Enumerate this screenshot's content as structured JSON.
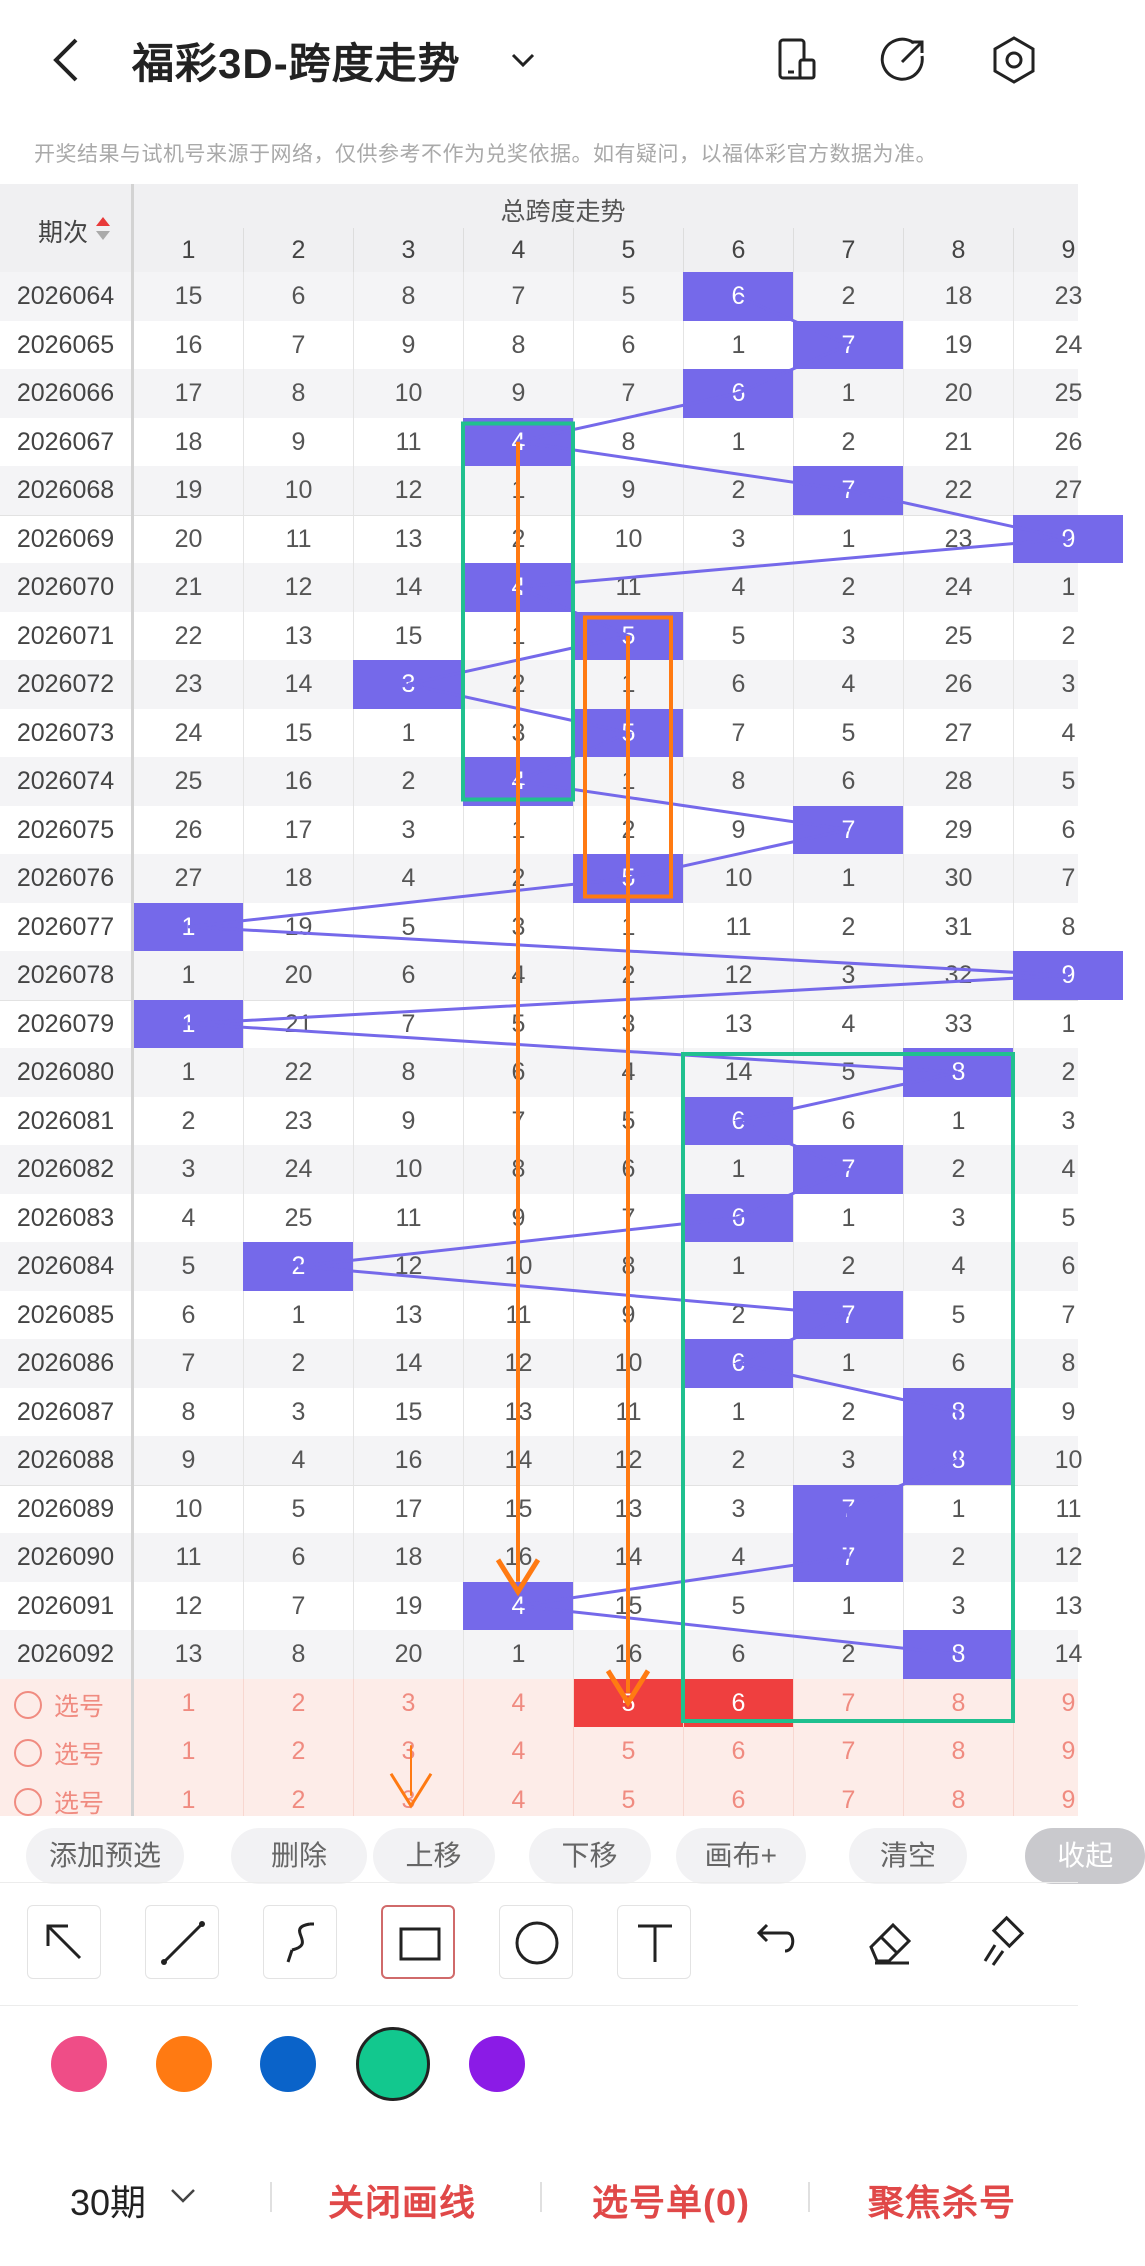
{
  "header": {
    "title": "福彩3D-跨度走势",
    "icons": [
      "back-arrow-icon",
      "chevron-down-icon",
      "device-icon",
      "share-icon",
      "settings-icon"
    ]
  },
  "notice": "开奖结果与试机号来源于网络，仅供参考不作为兑奖依据。如有疑问，以福体彩官方数据为准。",
  "table": {
    "period_header": "期次",
    "group_header": "总跨度走势",
    "columns": [
      "1",
      "2",
      "3",
      "4",
      "5",
      "6",
      "7",
      "8",
      "9"
    ],
    "rows": [
      {
        "period": "2026064",
        "cells": [
          "15",
          "6",
          "8",
          "7",
          "5",
          "6",
          "2",
          "18",
          "23"
        ],
        "hit": 6
      },
      {
        "period": "2026065",
        "cells": [
          "16",
          "7",
          "9",
          "8",
          "6",
          "1",
          "7",
          "19",
          "24"
        ],
        "hit": 7
      },
      {
        "period": "2026066",
        "cells": [
          "17",
          "8",
          "10",
          "9",
          "7",
          "6",
          "1",
          "20",
          "25"
        ],
        "hit": 6
      },
      {
        "period": "2026067",
        "cells": [
          "18",
          "9",
          "11",
          "4",
          "8",
          "1",
          "2",
          "21",
          "26"
        ],
        "hit": 4
      },
      {
        "period": "2026068",
        "cells": [
          "19",
          "10",
          "12",
          "1",
          "9",
          "2",
          "7",
          "22",
          "27"
        ],
        "hit": 7
      },
      {
        "period": "2026069",
        "cells": [
          "20",
          "11",
          "13",
          "2",
          "10",
          "3",
          "1",
          "23",
          "9"
        ],
        "hit": 9
      },
      {
        "period": "2026070",
        "cells": [
          "21",
          "12",
          "14",
          "4",
          "11",
          "4",
          "2",
          "24",
          "1"
        ],
        "hit": 4
      },
      {
        "period": "2026071",
        "cells": [
          "22",
          "13",
          "15",
          "1",
          "5",
          "5",
          "3",
          "25",
          "2"
        ],
        "hit": 5
      },
      {
        "period": "2026072",
        "cells": [
          "23",
          "14",
          "3",
          "2",
          "1",
          "6",
          "4",
          "26",
          "3"
        ],
        "hit": 3
      },
      {
        "period": "2026073",
        "cells": [
          "24",
          "15",
          "1",
          "3",
          "5",
          "7",
          "5",
          "27",
          "4"
        ],
        "hit": 5
      },
      {
        "period": "2026074",
        "cells": [
          "25",
          "16",
          "2",
          "4",
          "1",
          "8",
          "6",
          "28",
          "5"
        ],
        "hit": 4
      },
      {
        "period": "2026075",
        "cells": [
          "26",
          "17",
          "3",
          "1",
          "2",
          "9",
          "7",
          "29",
          "6"
        ],
        "hit": 7
      },
      {
        "period": "2026076",
        "cells": [
          "27",
          "18",
          "4",
          "2",
          "5",
          "10",
          "1",
          "30",
          "7"
        ],
        "hit": 5
      },
      {
        "period": "2026077",
        "cells": [
          "1",
          "19",
          "5",
          "3",
          "1",
          "11",
          "2",
          "31",
          "8"
        ],
        "hit": 1
      },
      {
        "period": "2026078",
        "cells": [
          "1",
          "20",
          "6",
          "4",
          "2",
          "12",
          "3",
          "32",
          "9"
        ],
        "hit": 9
      },
      {
        "period": "2026079",
        "cells": [
          "1",
          "21",
          "7",
          "5",
          "3",
          "13",
          "4",
          "33",
          "1"
        ],
        "hit": 1
      },
      {
        "period": "2026080",
        "cells": [
          "1",
          "22",
          "8",
          "6",
          "4",
          "14",
          "5",
          "8",
          "2"
        ],
        "hit": 8
      },
      {
        "period": "2026081",
        "cells": [
          "2",
          "23",
          "9",
          "7",
          "5",
          "6",
          "6",
          "1",
          "3"
        ],
        "hit": 6
      },
      {
        "period": "2026082",
        "cells": [
          "3",
          "24",
          "10",
          "8",
          "6",
          "1",
          "7",
          "2",
          "4"
        ],
        "hit": 7
      },
      {
        "period": "2026083",
        "cells": [
          "4",
          "25",
          "11",
          "9",
          "7",
          "6",
          "1",
          "3",
          "5"
        ],
        "hit": 6
      },
      {
        "period": "2026084",
        "cells": [
          "5",
          "2",
          "12",
          "10",
          "8",
          "1",
          "2",
          "4",
          "6"
        ],
        "hit": 2
      },
      {
        "period": "2026085",
        "cells": [
          "6",
          "1",
          "13",
          "11",
          "9",
          "2",
          "7",
          "5",
          "7"
        ],
        "hit": 7
      },
      {
        "period": "2026086",
        "cells": [
          "7",
          "2",
          "14",
          "12",
          "10",
          "6",
          "1",
          "6",
          "8"
        ],
        "hit": 6
      },
      {
        "period": "2026087",
        "cells": [
          "8",
          "3",
          "15",
          "13",
          "11",
          "1",
          "2",
          "8",
          "9"
        ],
        "hit": 8
      },
      {
        "period": "2026088",
        "cells": [
          "9",
          "4",
          "16",
          "14",
          "12",
          "2",
          "3",
          "8",
          "10"
        ],
        "hit": 8
      },
      {
        "period": "2026089",
        "cells": [
          "10",
          "5",
          "17",
          "15",
          "13",
          "3",
          "7",
          "1",
          "11"
        ],
        "hit": 7
      },
      {
        "period": "2026090",
        "cells": [
          "11",
          "6",
          "18",
          "16",
          "14",
          "4",
          "7",
          "2",
          "12"
        ],
        "hit": 7
      },
      {
        "period": "2026091",
        "cells": [
          "12",
          "7",
          "19",
          "4",
          "15",
          "5",
          "1",
          "3",
          "13"
        ],
        "hit": 4
      },
      {
        "period": "2026092",
        "cells": [
          "13",
          "8",
          "20",
          "1",
          "16",
          "6",
          "2",
          "8",
          "14"
        ],
        "hit": 8
      }
    ],
    "pick_label": "选号",
    "pick_rows": [
      [
        "1",
        "2",
        "3",
        "4",
        "5",
        "6",
        "7",
        "8",
        "9"
      ],
      [
        "1",
        "2",
        "3",
        "4",
        "5",
        "6",
        "7",
        "8",
        "9"
      ],
      [
        "1",
        "2",
        "3",
        "4",
        "5",
        "6",
        "7",
        "8",
        "9"
      ]
    ]
  },
  "actions": [
    "添加预选",
    "删除",
    "上移",
    "下移",
    "画布+",
    "清空",
    "收起"
  ],
  "tools": [
    "arrow-tool-icon",
    "line-tool-icon",
    "curve-tool-icon",
    "rectangle-tool-icon",
    "circle-tool-icon",
    "text-tool-icon",
    "undo-icon",
    "eraser-icon",
    "clear-brush-icon"
  ],
  "palette": [
    "#ef4d87",
    "#ff7a12",
    "#0a63c9",
    "#12c88e",
    "#8b1be6"
  ],
  "bottom": {
    "period_select": "30期",
    "close_draw": "关闭画线",
    "pick_list": "选号单(0)",
    "focus_kill": "聚焦杀号"
  }
}
